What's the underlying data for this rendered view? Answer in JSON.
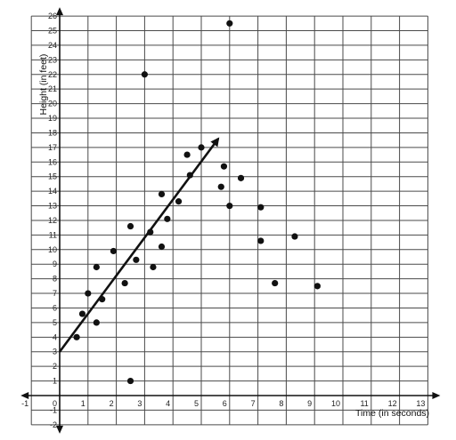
{
  "chart_data": {
    "type": "scatter",
    "xlabel": "Time (in seconds)",
    "ylabel": "Height (in feet)",
    "xlim": [
      -1,
      13
    ],
    "ylim": [
      -2,
      26
    ],
    "grid": true,
    "x_ticks": [
      "-1",
      "0",
      "1",
      "2",
      "3",
      "4",
      "5",
      "6",
      "7",
      "8",
      "9",
      "10",
      "11",
      "12",
      "13"
    ],
    "y_ticks": [
      "-2",
      "-1",
      "0",
      "1",
      "2",
      "3",
      "4",
      "5",
      "6",
      "7",
      "8",
      "9",
      "10",
      "11",
      "12",
      "13",
      "14",
      "15",
      "16",
      "17",
      "18",
      "19",
      "20",
      "21",
      "22",
      "23",
      "24",
      "25",
      "26"
    ],
    "points": [
      {
        "x": 0.6,
        "y": 4.0
      },
      {
        "x": 0.8,
        "y": 5.6
      },
      {
        "x": 1.0,
        "y": 7.0
      },
      {
        "x": 1.3,
        "y": 5.0
      },
      {
        "x": 1.3,
        "y": 8.8
      },
      {
        "x": 1.5,
        "y": 6.6
      },
      {
        "x": 1.9,
        "y": 9.9
      },
      {
        "x": 2.3,
        "y": 7.7
      },
      {
        "x": 2.5,
        "y": 11.6
      },
      {
        "x": 2.5,
        "y": 1.0
      },
      {
        "x": 2.7,
        "y": 9.3
      },
      {
        "x": 3.0,
        "y": 22.0
      },
      {
        "x": 3.2,
        "y": 11.2
      },
      {
        "x": 3.3,
        "y": 8.8
      },
      {
        "x": 3.6,
        "y": 10.2
      },
      {
        "x": 3.6,
        "y": 13.8
      },
      {
        "x": 3.8,
        "y": 12.1
      },
      {
        "x": 4.2,
        "y": 13.3
      },
      {
        "x": 4.5,
        "y": 16.5
      },
      {
        "x": 4.6,
        "y": 15.1
      },
      {
        "x": 5.0,
        "y": 17.0
      },
      {
        "x": 5.7,
        "y": 14.3
      },
      {
        "x": 5.8,
        "y": 15.7
      },
      {
        "x": 6.0,
        "y": 13.0
      },
      {
        "x": 6.0,
        "y": 25.5
      },
      {
        "x": 6.4,
        "y": 14.9
      },
      {
        "x": 7.1,
        "y": 12.9
      },
      {
        "x": 7.1,
        "y": 10.6
      },
      {
        "x": 7.6,
        "y": 7.7
      },
      {
        "x": 8.3,
        "y": 10.9
      },
      {
        "x": 9.1,
        "y": 7.5
      }
    ],
    "trend_line": {
      "x1": 0.0,
      "y1": 3.0,
      "x2": 5.6,
      "y2": 17.6
    }
  }
}
